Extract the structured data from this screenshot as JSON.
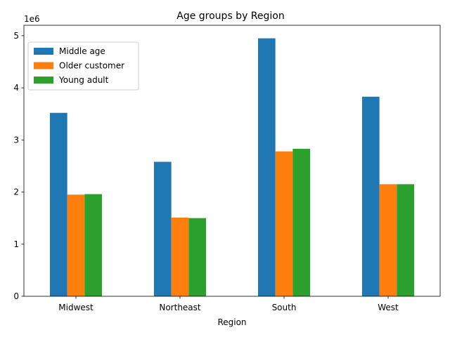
{
  "chart_data": {
    "type": "bar",
    "title": "Age groups by Region",
    "xlabel": "Region",
    "ylabel": "",
    "offset_label": "1e6",
    "categories": [
      "Midwest",
      "Northeast",
      "South",
      "West"
    ],
    "series": [
      {
        "name": "Middle age",
        "color": "#1f77b4",
        "values": [
          3520000,
          2580000,
          4950000,
          3830000
        ]
      },
      {
        "name": "Older customer",
        "color": "#ff7f0e",
        "values": [
          1950000,
          1510000,
          2780000,
          2150000
        ]
      },
      {
        "name": "Young adult",
        "color": "#2ca02c",
        "values": [
          1960000,
          1500000,
          2830000,
          2150000
        ]
      }
    ],
    "ylim": [
      0,
      5200000
    ],
    "yticks": [
      0,
      1000000,
      2000000,
      3000000,
      4000000,
      5000000
    ],
    "ytick_labels": [
      "0",
      "1",
      "2",
      "3",
      "4",
      "5"
    ],
    "legend_position": "upper-left",
    "grid": false
  }
}
